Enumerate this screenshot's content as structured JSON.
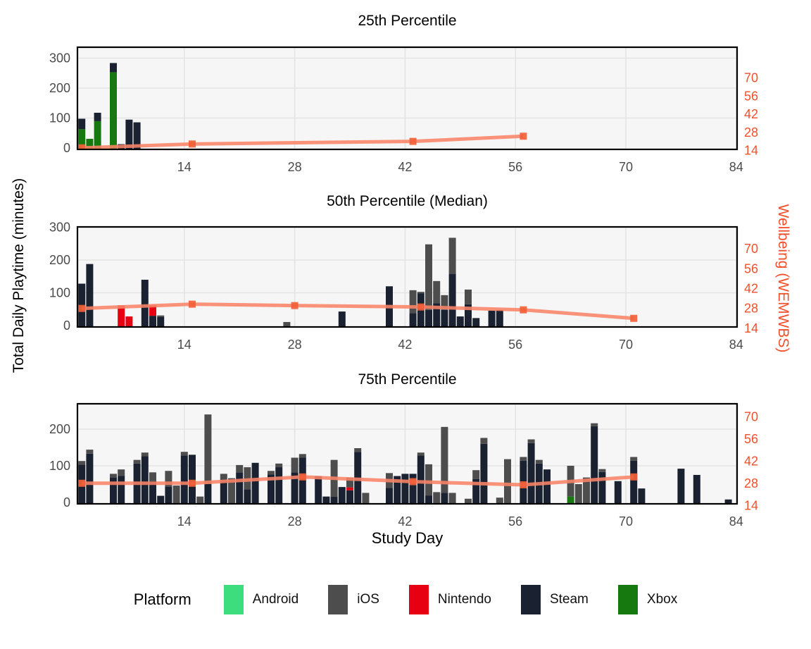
{
  "figure": {
    "y_axis_label_left": "Total Daily Playtime (minutes)",
    "y_axis_label_right": "Wellbeing (WEMWBS)",
    "x_axis_label": "Study Day",
    "legend": {
      "title": "Platform",
      "entries": [
        {
          "label": "Android",
          "platform": "Android"
        },
        {
          "label": "iOS",
          "platform": "iOS"
        },
        {
          "label": "Nintendo",
          "platform": "Nintendo"
        },
        {
          "label": "Steam",
          "platform": "Steam"
        },
        {
          "label": "Xbox",
          "platform": "Xbox"
        }
      ]
    }
  },
  "colors": {
    "platforms": {
      "Android": "#3ddc7d",
      "iOS": "#4d4d4d",
      "Nintendo": "#e60012",
      "Steam": "#1a2130",
      "Xbox": "#16790f"
    },
    "wellbeing_line": "#fa8468",
    "wellbeing_marker": "#f2613a",
    "right_axis_text": "#f0502b",
    "tick_text": "#4a4a4a",
    "panel_bg": "#f6f6f6",
    "grid": "#e4e4e4",
    "border": "#000000"
  },
  "stack_order_bottom_to_top": [
    "Xbox",
    "Steam",
    "Nintendo",
    "iOS",
    "Android"
  ],
  "chart_data": [
    {
      "type": "bar",
      "subtype": "stacked-bars-with-secondary-line",
      "title": "25th Percentile",
      "x_axis": {
        "label": "Study Day",
        "ticks": [
          14,
          28,
          42,
          56,
          70,
          84
        ],
        "range": [
          0,
          85
        ]
      },
      "y_left": {
        "label": "Total Daily Playtime (minutes)",
        "ticks": [
          0,
          100,
          200,
          300
        ],
        "range": [
          0,
          341
        ]
      },
      "y_right": {
        "label": "Wellbeing (WEMWBS)",
        "ticks": [
          14,
          28,
          42,
          56,
          70
        ]
      },
      "bars": [
        {
          "day": 1,
          "segments": {
            "Xbox": 65,
            "Steam": 35
          }
        },
        {
          "day": 2,
          "segments": {
            "Xbox": 33
          }
        },
        {
          "day": 3,
          "segments": {
            "Xbox": 92,
            "Steam": 28
          }
        },
        {
          "day": 5,
          "segments": {
            "Xbox": 255,
            "Steam": 31
          }
        },
        {
          "day": 6,
          "segments": {
            "Steam": 15
          }
        },
        {
          "day": 7,
          "segments": {
            "Steam": 97
          }
        },
        {
          "day": 8,
          "segments": {
            "Steam": 88
          }
        }
      ],
      "wellbeing": {
        "days": [
          1,
          15,
          43,
          57
        ],
        "values": [
          16,
          19,
          21,
          25
        ]
      }
    },
    {
      "type": "bar",
      "subtype": "stacked-bars-with-secondary-line",
      "title": "50th Percentile (Median)",
      "x_axis": {
        "label": "Study Day",
        "ticks": [
          14,
          28,
          42,
          56,
          70,
          84
        ],
        "range": [
          0,
          85
        ]
      },
      "y_left": {
        "label": "Total Daily Playtime (minutes)",
        "ticks": [
          0,
          100,
          200,
          300
        ],
        "range": [
          0,
          311
        ]
      },
      "y_right": {
        "label": "Wellbeing (WEMWBS)",
        "ticks": [
          14,
          28,
          42,
          56,
          70
        ]
      },
      "bars": [
        {
          "day": 1,
          "segments": {
            "Steam": 130
          }
        },
        {
          "day": 2,
          "segments": {
            "Steam": 190
          }
        },
        {
          "day": 6,
          "segments": {
            "Nintendo": 64
          }
        },
        {
          "day": 7,
          "segments": {
            "Nintendo": 30
          }
        },
        {
          "day": 9,
          "segments": {
            "Steam": 142
          }
        },
        {
          "day": 10,
          "segments": {
            "Steam": 32,
            "Nintendo": 32
          }
        },
        {
          "day": 11,
          "segments": {
            "Steam": 28,
            "iOS": 5
          }
        },
        {
          "day": 27,
          "segments": {
            "iOS": 13
          }
        },
        {
          "day": 34,
          "segments": {
            "Steam": 45
          }
        },
        {
          "day": 40,
          "segments": {
            "Steam": 122
          }
        },
        {
          "day": 43,
          "segments": {
            "Steam": 40,
            "iOS": 70
          }
        },
        {
          "day": 44,
          "segments": {
            "Steam": 100,
            "iOS": 5
          }
        },
        {
          "day": 45,
          "segments": {
            "Steam": 50,
            "iOS": 200
          }
        },
        {
          "day": 46,
          "segments": {
            "Steam": 70,
            "iOS": 68
          }
        },
        {
          "day": 47,
          "segments": {
            "Steam": 50,
            "iOS": 45
          }
        },
        {
          "day": 48,
          "segments": {
            "Steam": 160,
            "iOS": 110
          }
        },
        {
          "day": 49,
          "segments": {
            "Steam": 30
          }
        },
        {
          "day": 50,
          "segments": {
            "Steam": 67,
            "iOS": 45
          }
        },
        {
          "day": 51,
          "segments": {
            "Steam": 25
          }
        },
        {
          "day": 53,
          "segments": {
            "Steam": 48
          }
        },
        {
          "day": 54,
          "segments": {
            "Steam": 50
          }
        }
      ],
      "wellbeing": {
        "days": [
          1,
          15,
          28,
          44,
          57,
          71
        ],
        "values": [
          28,
          31,
          30,
          29,
          27,
          21
        ]
      }
    },
    {
      "type": "bar",
      "subtype": "stacked-bars-with-secondary-line",
      "title": "75th Percentile",
      "x_axis": {
        "label": "Study Day",
        "ticks": [
          14,
          28,
          42,
          56,
          70,
          84
        ],
        "range": [
          0,
          85
        ]
      },
      "y_left": {
        "label": "Total Daily Playtime (minutes)",
        "ticks": [
          0,
          100,
          200
        ],
        "range": [
          0,
          270
        ]
      },
      "y_right": {
        "label": "Wellbeing (WEMWBS)",
        "ticks": [
          14,
          28,
          42,
          56,
          70
        ]
      },
      "bars": [
        {
          "day": 1,
          "segments": {
            "Steam": 105,
            "iOS": 10
          }
        },
        {
          "day": 2,
          "segments": {
            "Steam": 135,
            "iOS": 11
          }
        },
        {
          "day": 5,
          "segments": {
            "Steam": 70,
            "iOS": 10
          }
        },
        {
          "day": 6,
          "segments": {
            "Steam": 74,
            "iOS": 18
          }
        },
        {
          "day": 8,
          "segments": {
            "Steam": 108,
            "iOS": 10
          }
        },
        {
          "day": 9,
          "segments": {
            "Steam": 128,
            "iOS": 10
          }
        },
        {
          "day": 10,
          "segments": {
            "Steam": 60,
            "iOS": 24
          }
        },
        {
          "day": 11,
          "segments": {
            "Steam": 20
          }
        },
        {
          "day": 12,
          "segments": {
            "Steam": 45,
            "iOS": 43
          }
        },
        {
          "day": 13,
          "segments": {
            "iOS": 48
          }
        },
        {
          "day": 14,
          "segments": {
            "Steam": 130,
            "iOS": 10
          }
        },
        {
          "day": 15,
          "segments": {
            "Steam": 132
          }
        },
        {
          "day": 16,
          "segments": {
            "iOS": 18
          }
        },
        {
          "day": 17,
          "segments": {
            "Steam": 52,
            "iOS": 190
          }
        },
        {
          "day": 19,
          "segments": {
            "Steam": 60,
            "iOS": 20
          }
        },
        {
          "day": 20,
          "segments": {
            "iOS": 68
          }
        },
        {
          "day": 21,
          "segments": {
            "Steam": 84,
            "iOS": 20
          }
        },
        {
          "day": 22,
          "segments": {
            "Steam": 38,
            "iOS": 60
          }
        },
        {
          "day": 23,
          "segments": {
            "Steam": 110
          }
        },
        {
          "day": 25,
          "segments": {
            "Steam": 78,
            "iOS": 10
          }
        },
        {
          "day": 26,
          "segments": {
            "Steam": 98,
            "iOS": 10
          }
        },
        {
          "day": 28,
          "segments": {
            "Steam": 84,
            "iOS": 40
          }
        },
        {
          "day": 29,
          "segments": {
            "Steam": 124,
            "iOS": 10
          }
        },
        {
          "day": 31,
          "segments": {
            "Steam": 74
          }
        },
        {
          "day": 32,
          "segments": {
            "Steam": 18
          }
        },
        {
          "day": 33,
          "segments": {
            "Steam": 18,
            "iOS": 100
          }
        },
        {
          "day": 34,
          "segments": {
            "Steam": 44
          }
        },
        {
          "day": 35,
          "segments": {
            "Steam": 35,
            "Nintendo": 8,
            "iOS": 27
          }
        },
        {
          "day": 36,
          "segments": {
            "Steam": 140,
            "iOS": 10
          }
        },
        {
          "day": 37,
          "segments": {
            "iOS": 28
          }
        },
        {
          "day": 40,
          "segments": {
            "Steam": 42,
            "iOS": 40
          }
        },
        {
          "day": 41,
          "segments": {
            "Steam": 74
          }
        },
        {
          "day": 42,
          "segments": {
            "Steam": 80
          }
        },
        {
          "day": 43,
          "segments": {
            "Steam": 80
          }
        },
        {
          "day": 44,
          "segments": {
            "Steam": 130,
            "iOS": 8
          }
        },
        {
          "day": 45,
          "segments": {
            "Steam": 21,
            "iOS": 85
          }
        },
        {
          "day": 46,
          "segments": {
            "iOS": 30
          }
        },
        {
          "day": 47,
          "segments": {
            "Steam": 28,
            "iOS": 180
          }
        },
        {
          "day": 48,
          "segments": {
            "iOS": 28
          }
        },
        {
          "day": 50,
          "segments": {
            "iOS": 12
          }
        },
        {
          "day": 51,
          "segments": {
            "Steam": 66,
            "iOS": 24
          }
        },
        {
          "day": 52,
          "segments": {
            "Steam": 162,
            "iOS": 16
          }
        },
        {
          "day": 54,
          "segments": {
            "iOS": 15
          }
        },
        {
          "day": 55,
          "segments": {
            "iOS": 120
          }
        },
        {
          "day": 57,
          "segments": {
            "Steam": 116,
            "iOS": 10
          }
        },
        {
          "day": 58,
          "segments": {
            "Steam": 164,
            "iOS": 10
          }
        },
        {
          "day": 59,
          "segments": {
            "Steam": 108,
            "iOS": 10
          }
        },
        {
          "day": 60,
          "segments": {
            "Steam": 92
          }
        },
        {
          "day": 63,
          "segments": {
            "Xbox": 18,
            "iOS": 84
          }
        },
        {
          "day": 64,
          "segments": {
            "iOS": 52
          }
        },
        {
          "day": 65,
          "segments": {
            "iOS": 70
          }
        },
        {
          "day": 66,
          "segments": {
            "Steam": 210,
            "iOS": 8
          }
        },
        {
          "day": 67,
          "segments": {
            "Steam": 85,
            "iOS": 8
          }
        },
        {
          "day": 69,
          "segments": {
            "Steam": 60
          }
        },
        {
          "day": 71,
          "segments": {
            "Steam": 116,
            "iOS": 10
          }
        },
        {
          "day": 72,
          "segments": {
            "Steam": 40
          }
        },
        {
          "day": 77,
          "segments": {
            "Steam": 94
          }
        },
        {
          "day": 79,
          "segments": {
            "Steam": 77
          }
        },
        {
          "day": 83,
          "segments": {
            "Steam": 10
          }
        }
      ],
      "wellbeing": {
        "days": [
          1,
          15,
          29,
          43,
          57,
          71
        ],
        "values": [
          28,
          28,
          32,
          29,
          27,
          32
        ]
      }
    }
  ]
}
